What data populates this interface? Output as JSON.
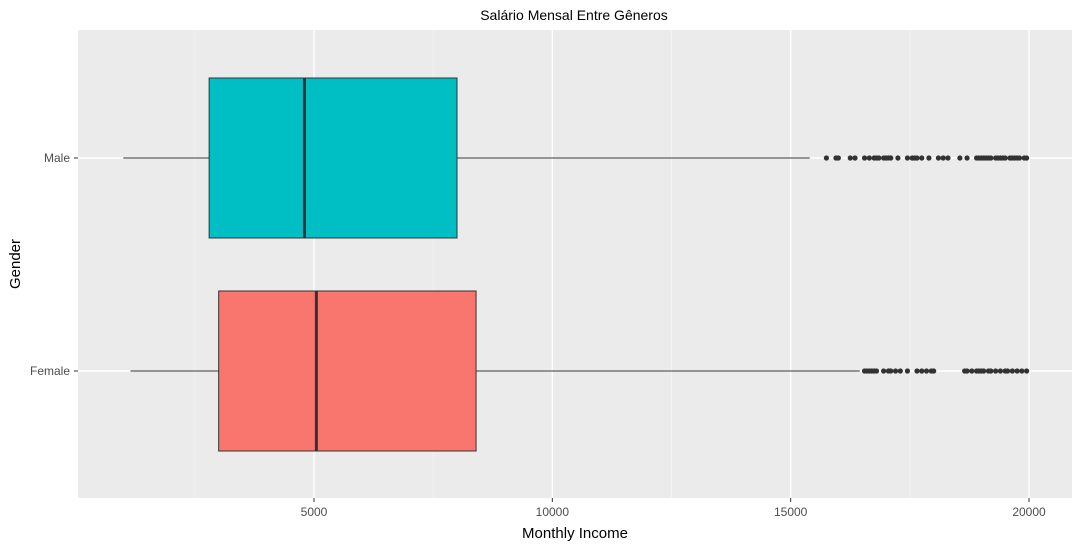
{
  "chart_data": {
    "type": "boxplot",
    "orientation": "horizontal",
    "title": "Salário Mensal Entre Gêneros",
    "xlabel": "Monthly Income",
    "ylabel": "Gender",
    "xlim": [
      0,
      21000
    ],
    "x_ticks": [
      5000,
      10000,
      15000,
      20000
    ],
    "x_tick_labels": [
      "5000",
      "10000",
      "15000",
      "20000"
    ],
    "categories": [
      "Male",
      "Female"
    ],
    "grid": true,
    "legend": "none",
    "panel_color": "#ebebeb",
    "series": [
      {
        "name": "Male",
        "color": "#00bfc4",
        "whisker_low": 1000,
        "q1": 2800,
        "median": 4800,
        "q3": 8000,
        "whisker_high": 15400,
        "outliers": [
          15750,
          15950,
          16000,
          16250,
          16350,
          16550,
          16650,
          16750,
          16800,
          16850,
          16950,
          17000,
          17050,
          17100,
          17250,
          17450,
          17550,
          17600,
          17650,
          17750,
          17900,
          18100,
          18200,
          18300,
          18550,
          18700,
          18900,
          18950,
          19000,
          19050,
          19100,
          19150,
          19200,
          19300,
          19350,
          19400,
          19450,
          19500,
          19600,
          19650,
          19700,
          19750,
          19800,
          19900,
          19950
        ]
      },
      {
        "name": "Female",
        "color": "#f8766d",
        "whisker_low": 1150,
        "q1": 3000,
        "median": 5050,
        "q3": 8400,
        "whisker_high": 16450,
        "outliers": [
          16550,
          16600,
          16650,
          16700,
          16750,
          16800,
          16950,
          17050,
          17100,
          17200,
          17300,
          17450,
          17650,
          17750,
          17850,
          17950,
          18000,
          18650,
          18700,
          18800,
          18900,
          18950,
          19000,
          19050,
          19150,
          19200,
          19300,
          19400,
          19500,
          19550,
          19650,
          19750,
          19850,
          19950
        ]
      }
    ]
  }
}
